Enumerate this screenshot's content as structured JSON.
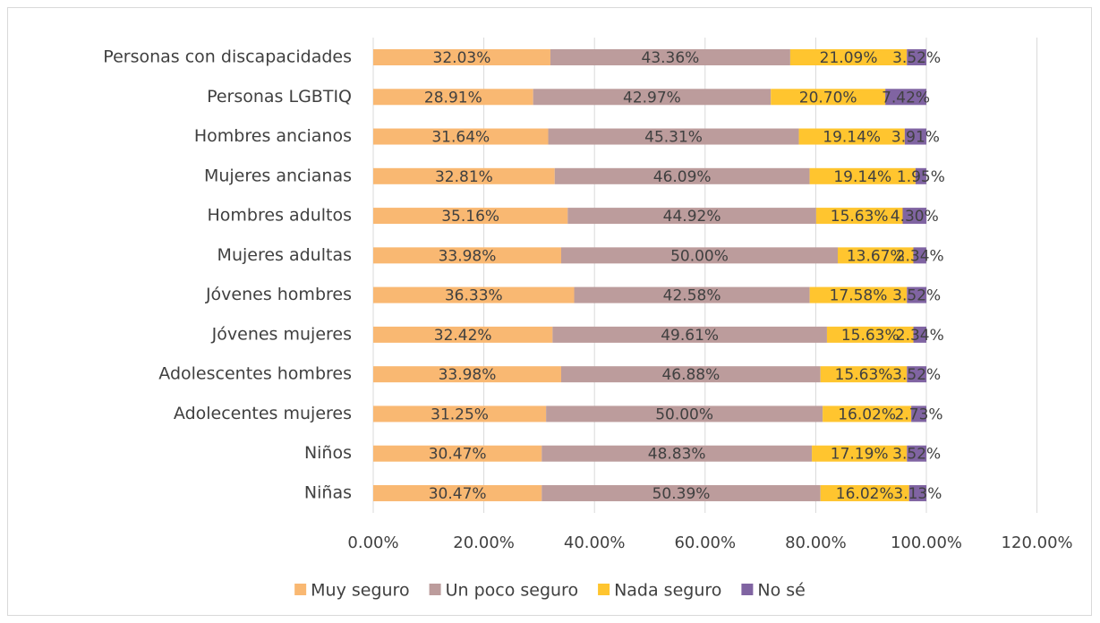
{
  "chart_data": {
    "type": "stacked_barh",
    "categories": [
      "Personas con discapacidades",
      "Personas LGBTIQ",
      "Hombres ancianos",
      "Mujeres ancianas",
      "Hombres adultos",
      "Mujeres adultas",
      "Jóvenes hombres",
      "Jóvenes mujeres",
      "Adolescentes hombres",
      "Adolecentes mujeres",
      "Niños",
      "Niñas"
    ],
    "series": [
      {
        "name": "Muy seguro",
        "color": "#f9b872",
        "values": [
          32.03,
          28.91,
          31.64,
          32.81,
          35.16,
          33.98,
          36.33,
          32.42,
          33.98,
          31.25,
          30.47,
          30.47
        ],
        "value_labels": [
          "32.03%",
          "28.91%",
          "31.64%",
          "32.81%",
          "35.16%",
          "33.98%",
          "36.33%",
          "32.42%",
          "33.98%",
          "31.25%",
          "30.47%",
          "30.47%"
        ]
      },
      {
        "name": "Un poco seguro",
        "color": "#bc9c9c",
        "values": [
          43.36,
          42.97,
          45.31,
          46.09,
          44.92,
          50.0,
          42.58,
          49.61,
          46.88,
          50.0,
          48.83,
          50.39
        ],
        "value_labels": [
          "43.36%",
          "42.97%",
          "45.31%",
          "46.09%",
          "44.92%",
          "50.00%",
          "42.58%",
          "49.61%",
          "46.88%",
          "50.00%",
          "48.83%",
          "50.39%"
        ]
      },
      {
        "name": "Nada seguro",
        "color": "#ffc52f",
        "values": [
          21.09,
          20.7,
          19.14,
          19.14,
          15.63,
          13.67,
          17.58,
          15.63,
          15.63,
          16.02,
          17.19,
          16.02
        ],
        "value_labels": [
          "21.09%",
          "20.70%",
          "19.14%",
          "19.14%",
          "15.63%",
          "13.67%",
          "17.58%",
          "15.63%",
          "15.63%",
          "16.02%",
          "17.19%",
          "16.02%"
        ]
      },
      {
        "name": "No sé",
        "color": "#8064a2",
        "values": [
          3.52,
          7.42,
          3.91,
          1.95,
          4.3,
          2.34,
          3.52,
          2.34,
          3.52,
          2.73,
          3.52,
          3.13
        ],
        "value_labels": [
          "3.52%",
          "7.42%",
          "3.91%",
          "1.95%",
          "4.30%",
          "2.34%",
          "3.52%",
          "2.34%",
          "3.52%",
          "2.73%",
          "3.52%",
          "3.13%"
        ]
      }
    ],
    "xlim": [
      0,
      120
    ],
    "xticks": [
      {
        "value": 0,
        "label": "0.00%"
      },
      {
        "value": 20,
        "label": "20.00%"
      },
      {
        "value": 40,
        "label": "40.00%"
      },
      {
        "value": 60,
        "label": "60.00%"
      },
      {
        "value": 80,
        "label": "80.00%"
      },
      {
        "value": 100,
        "label": "100.00%"
      },
      {
        "value": 120,
        "label": "120.00%"
      }
    ],
    "grid": true,
    "legend": "bottom"
  }
}
